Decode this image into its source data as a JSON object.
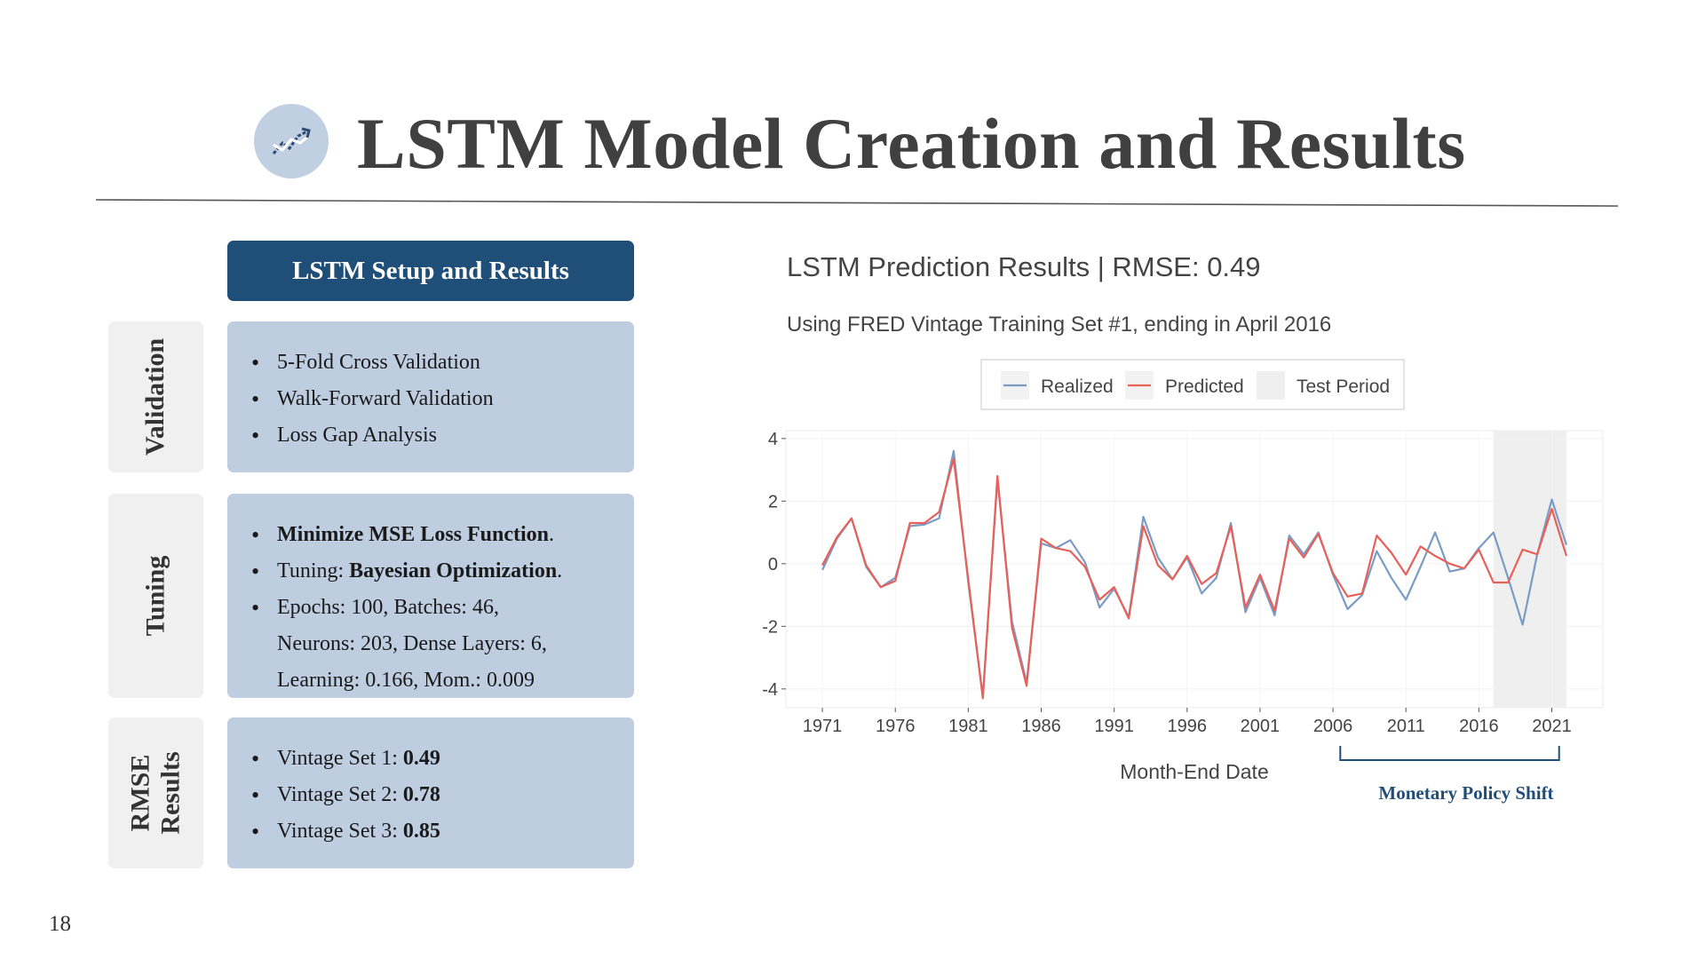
{
  "page": {
    "title": "LSTM Model Creation and Results",
    "title_icon": "line-chart-icon",
    "page_number": "18"
  },
  "left_panel": {
    "header": "LSTM Setup and Results",
    "sections": [
      {
        "tab_label": "Validation",
        "bullets": [
          [
            {
              "t": "5-Fold Cross Validation",
              "b": false
            }
          ],
          [
            {
              "t": "Walk-Forward Validation",
              "b": false
            }
          ],
          [
            {
              "t": "Loss Gap Analysis",
              "b": false
            }
          ]
        ]
      },
      {
        "tab_label": "Tuning",
        "bullets": [
          [
            {
              "t": "Minimize MSE Loss Function",
              "b": true
            },
            {
              "t": ".",
              "b": false
            }
          ],
          [
            {
              "t": "Tuning: ",
              "b": false
            },
            {
              "t": "Bayesian Optimization",
              "b": true
            },
            {
              "t": ".",
              "b": false
            }
          ],
          [
            {
              "t": "Epochs: 100, Batches: 46,",
              "b": false
            }
          ],
          [
            {
              "t": "Neurons: 203, Dense Layers: 6,",
              "b": false
            }
          ],
          [
            {
              "t": "Learning: 0.166, Mom.: 0.009",
              "b": false
            }
          ]
        ]
      },
      {
        "tab_label_lines": [
          "RMSE",
          "Results"
        ],
        "bullets": [
          [
            {
              "t": "Vintage Set 1: ",
              "b": false
            },
            {
              "t": "0.49",
              "b": true
            }
          ],
          [
            {
              "t": "Vintage Set 2: ",
              "b": false
            },
            {
              "t": "0.78",
              "b": true
            }
          ],
          [
            {
              "t": "Vintage Set 3: ",
              "b": false
            },
            {
              "t": "0.85",
              "b": true
            }
          ]
        ]
      }
    ]
  },
  "colors": {
    "header_bg": "#1f4e79",
    "card_bg": "#bfcde1",
    "tab_bg": "#f0f0f0",
    "realized": "#7a9cc4",
    "predicted": "#e8605a",
    "test_period": "#efefef",
    "annotation": "#1f4e79"
  },
  "chart_data": {
    "type": "line",
    "title": "LSTM Prediction Results | RMSE: 0.49",
    "subtitle": "Using FRED Vintage Training Set #1, ending in April 2016",
    "xlabel": "Month-End Date",
    "ylabel": "",
    "xlim": [
      1968.5,
      2024.5
    ],
    "ylim": [
      -4.6,
      4.25
    ],
    "x_ticks": [
      1971,
      1976,
      1981,
      1986,
      1991,
      1996,
      2001,
      2006,
      2011,
      2016,
      2021
    ],
    "y_ticks": [
      -4,
      -2,
      0,
      2,
      4
    ],
    "grid": true,
    "legend": {
      "placement": "top",
      "entries": [
        "Realized",
        "Predicted",
        "Test Period"
      ]
    },
    "test_period": [
      2017.0,
      2022.0
    ],
    "annotation": {
      "text": "Monetary Policy Shift",
      "range": [
        2006.5,
        2021.5
      ]
    },
    "x": [
      1971,
      1972,
      1973,
      1974,
      1975,
      1976,
      1977,
      1978,
      1979,
      1980,
      1981,
      1982,
      1983,
      1984,
      1985,
      1986,
      1987,
      1988,
      1989,
      1990,
      1991,
      1992,
      1993,
      1994,
      1995,
      1996,
      1997,
      1998,
      1999,
      2000,
      2001,
      2002,
      2003,
      2004,
      2005,
      2006,
      2007,
      2008,
      2009,
      2010,
      2011,
      2012,
      2013,
      2014,
      2015,
      2016,
      2017,
      2018,
      2019,
      2020,
      2021,
      2022
    ],
    "series": [
      {
        "name": "Realized",
        "values": [
          -0.2,
          0.8,
          1.45,
          -0.1,
          -0.75,
          -0.45,
          1.2,
          1.25,
          1.45,
          3.6,
          -0.6,
          -4.25,
          2.7,
          -1.85,
          -3.8,
          0.65,
          0.5,
          0.75,
          0.05,
          -1.4,
          -0.8,
          -1.7,
          1.5,
          0.2,
          -0.5,
          0.2,
          -0.95,
          -0.45,
          1.3,
          -1.55,
          -0.45,
          -1.65,
          0.9,
          0.3,
          1.0,
          -0.35,
          -1.45,
          -1.0,
          0.4,
          -0.45,
          -1.15,
          -0.1,
          1.0,
          -0.25,
          -0.15,
          0.5,
          1.0,
          -0.45,
          -1.95,
          0.3,
          2.05,
          0.6
        ]
      },
      {
        "name": "Predicted",
        "values": [
          -0.05,
          0.85,
          1.45,
          -0.05,
          -0.75,
          -0.55,
          1.3,
          1.3,
          1.65,
          3.35,
          -0.5,
          -4.3,
          2.8,
          -2.05,
          -3.9,
          0.8,
          0.5,
          0.4,
          -0.1,
          -1.15,
          -0.75,
          -1.75,
          1.2,
          -0.05,
          -0.5,
          0.25,
          -0.65,
          -0.3,
          1.2,
          -1.4,
          -0.35,
          -1.5,
          0.8,
          0.2,
          0.95,
          -0.3,
          -1.05,
          -0.95,
          0.9,
          0.35,
          -0.35,
          0.55,
          0.25,
          0.0,
          -0.15,
          0.45,
          -0.6,
          -0.6,
          0.45,
          0.3,
          1.75,
          0.25
        ]
      }
    ]
  }
}
